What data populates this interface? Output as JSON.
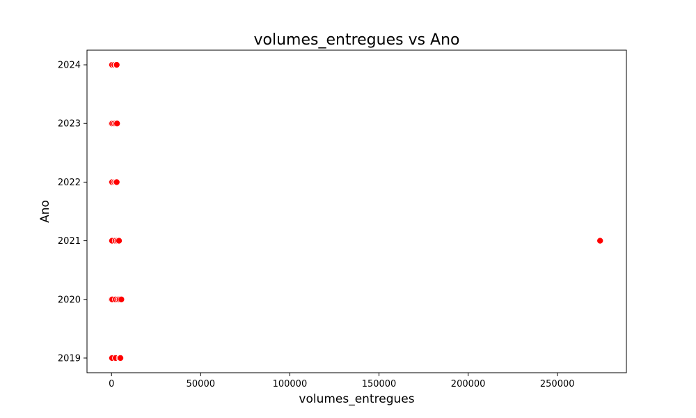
{
  "chart_data": {
    "type": "scatter",
    "title": "volumes_entregues vs Ano",
    "xlabel": "volumes_entregues",
    "ylabel": "Ano",
    "xlim": [
      -13750,
      288750
    ],
    "ylim": [
      2018.75,
      2024.25
    ],
    "xticks": [
      0,
      50000,
      100000,
      150000,
      200000,
      250000
    ],
    "xtick_labels": [
      "0",
      "50000",
      "100000",
      "150000",
      "200000",
      "250000"
    ],
    "yticks": [
      2019,
      2020,
      2021,
      2022,
      2023,
      2024
    ],
    "ytick_labels": [
      "2019",
      "2020",
      "2021",
      "2022",
      "2023",
      "2024"
    ],
    "grid": false,
    "point_color": "#ff0000",
    "points": [
      {
        "x": 0,
        "y": 2024
      },
      {
        "x": 300,
        "y": 2024
      },
      {
        "x": 1500,
        "y": 2024
      },
      {
        "x": 2600,
        "y": 2024
      },
      {
        "x": 2900,
        "y": 2024
      },
      {
        "x": 0,
        "y": 2023
      },
      {
        "x": 400,
        "y": 2023
      },
      {
        "x": 1400,
        "y": 2023
      },
      {
        "x": 2300,
        "y": 2023
      },
      {
        "x": 3100,
        "y": 2023
      },
      {
        "x": 0,
        "y": 2022
      },
      {
        "x": 350,
        "y": 2022
      },
      {
        "x": 1600,
        "y": 2022
      },
      {
        "x": 2400,
        "y": 2022
      },
      {
        "x": 2900,
        "y": 2022
      },
      {
        "x": 0,
        "y": 2021
      },
      {
        "x": 300,
        "y": 2021
      },
      {
        "x": 2200,
        "y": 2021
      },
      {
        "x": 3300,
        "y": 2021
      },
      {
        "x": 4200,
        "y": 2021
      },
      {
        "x": 274000,
        "y": 2021
      },
      {
        "x": 0,
        "y": 2020
      },
      {
        "x": 400,
        "y": 2020
      },
      {
        "x": 2300,
        "y": 2020
      },
      {
        "x": 3600,
        "y": 2020
      },
      {
        "x": 4500,
        "y": 2020
      },
      {
        "x": 5500,
        "y": 2020
      },
      {
        "x": 0,
        "y": 2019
      },
      {
        "x": 300,
        "y": 2019
      },
      {
        "x": 2300,
        "y": 2019
      },
      {
        "x": 4500,
        "y": 2019
      },
      {
        "x": 5000,
        "y": 2019
      }
    ]
  }
}
